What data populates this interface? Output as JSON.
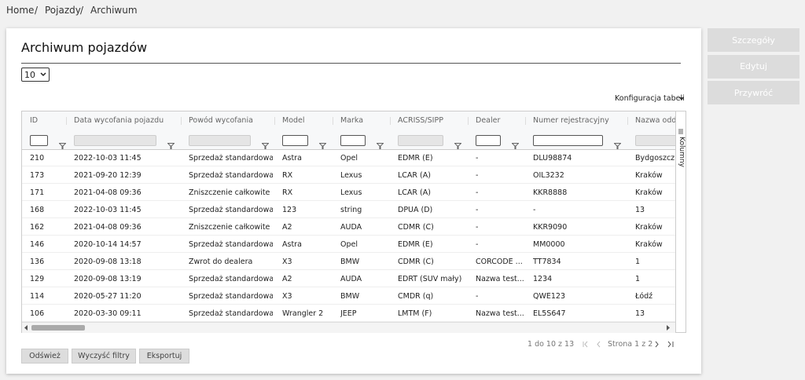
{
  "breadcrumb": {
    "items": [
      "Home",
      "Pojazdy",
      "Archiwum"
    ],
    "separator": "/"
  },
  "card": {
    "title": "Archiwum pojazdów",
    "page_size": "10",
    "config_menu": "Konfiguracja tabeli",
    "columns_panel": "Kolumny"
  },
  "table": {
    "columns": [
      "ID",
      "Data wycofania pojazdu",
      "Powód wycofania",
      "Model",
      "Marka",
      "ACRISS/SIPP",
      "Dealer",
      "Numer rejestracyjny",
      "Nazwa odd"
    ],
    "rows": [
      [
        "210",
        "2022-10-03 11:45",
        "Sprzedaż standardowa",
        "Astra",
        "Opel",
        "EDMR (E)",
        "-",
        "DLU98874",
        "Bydgoszcz"
      ],
      [
        "173",
        "2021-09-20 12:39",
        "Sprzedaż standardowa",
        "RX",
        "Lexus",
        "LCAR (A)",
        "-",
        "OIL3232",
        "Kraków"
      ],
      [
        "171",
        "2021-04-08 09:36",
        "Zniszczenie całkowite",
        "RX",
        "Lexus",
        "LCAR (A)",
        "-",
        "KKR8888",
        "Kraków"
      ],
      [
        "168",
        "2022-10-03 11:45",
        "Sprzedaż standardowa",
        "123",
        "string",
        "DPUA (D)",
        "-",
        "-",
        "13"
      ],
      [
        "162",
        "2021-04-08 09:36",
        "Zniszczenie całkowite",
        "A2",
        "AUDA",
        "CDMR (C)",
        "-",
        "KKR9090",
        "Kraków"
      ],
      [
        "146",
        "2020-10-14 14:57",
        "Sprzedaż standardowa",
        "Astra",
        "Opel",
        "EDMR (E)",
        "-",
        "MM0000",
        "Kraków"
      ],
      [
        "136",
        "2020-09-08 13:18",
        "Zwrot do dealera",
        "X3",
        "BMW",
        "CDMR (C)",
        "CORCODE ...",
        "TT7834",
        "1"
      ],
      [
        "129",
        "2020-09-08 13:19",
        "Sprzedaż standardowa",
        "A2",
        "AUDA",
        "EDRT (SUV mały)",
        "Nazwa test...",
        "1234",
        "1"
      ],
      [
        "114",
        "2020-05-27 11:20",
        "Sprzedaż standardowa",
        "X3",
        "BMW",
        "CMDR (q)",
        "-",
        "QWE123",
        "Łódź"
      ],
      [
        "106",
        "2020-03-30 09:11",
        "Sprzedaż standardowa",
        "Wrangler 2",
        "JEEP",
        "LMTM (F)",
        "Nazwa test...",
        "EL5S647",
        "13"
      ]
    ]
  },
  "pagination": {
    "range": "1 do 10 z 13",
    "page": "Strona 1 z 2"
  },
  "buttons": [
    "Odśwież",
    "Wyczyść filtry",
    "Eksportuj"
  ],
  "actions": [
    "Szczegóły",
    "Edytuj",
    "Przywróć"
  ]
}
